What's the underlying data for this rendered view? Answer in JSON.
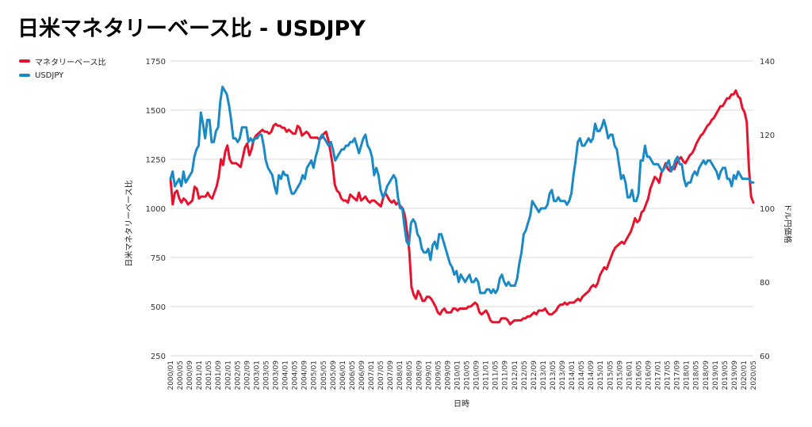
{
  "chart_data": {
    "type": "line",
    "title": "日米マネタリーベース比 - USDJPY",
    "xlabel": "日時",
    "ylabel_left": "日米マネタリーベース比",
    "ylabel_right": "ドル円価格",
    "ylim_left": [
      250,
      1750
    ],
    "ylim_right": [
      60,
      140
    ],
    "yticks_left": [
      "1750",
      "1500",
      "1250",
      "1000",
      "750",
      "500",
      "250"
    ],
    "yticks_right": [
      "140",
      "120",
      "100",
      "80",
      "60"
    ],
    "x_ticks": [
      "2000/01",
      "2000/05",
      "2000/09",
      "2001/01",
      "2001/05",
      "2001/09",
      "2002/01",
      "2002/05",
      "2002/09",
      "2003/01",
      "2003/05",
      "2003/09",
      "2004/01",
      "2004/05",
      "2004/09",
      "2005/01",
      "2005/05",
      "2005/09",
      "2006/01",
      "2006/05",
      "2006/09",
      "2007/01",
      "2007/05",
      "2007/09",
      "2008/01",
      "2008/05",
      "2008/09",
      "2009/01",
      "2009/05",
      "2009/09",
      "2010/01",
      "2010/05",
      "2010/09",
      "2011/01",
      "2011/05",
      "2011/09",
      "2012/01",
      "2012/05",
      "2012/09",
      "2013/01",
      "2013/05",
      "2013/09",
      "2014/01",
      "2014/05",
      "2014/09",
      "2015/01",
      "2015/05",
      "2015/09",
      "2016/01",
      "2016/05",
      "2016/09",
      "2017/01",
      "2017/05",
      "2017/09",
      "2018/01",
      "2018/05",
      "2018/09",
      "2019/01",
      "2019/05",
      "2019/09",
      "2020/01",
      "2020/05"
    ],
    "grid": true,
    "legend_position": "top-left",
    "series": [
      {
        "name": "マネタリーベース比",
        "color": "#e8122d",
        "axis": "left",
        "values": [
          1150,
          1020,
          1080,
          1090,
          1050,
          1030,
          1050,
          1040,
          1020,
          1030,
          1040,
          1110,
          1100,
          1050,
          1060,
          1060,
          1060,
          1080,
          1060,
          1050,
          1080,
          1110,
          1160,
          1250,
          1220,
          1290,
          1320,
          1250,
          1230,
          1230,
          1230,
          1220,
          1210,
          1260,
          1310,
          1330,
          1270,
          1300,
          1350,
          1370,
          1380,
          1390,
          1400,
          1390,
          1390,
          1380,
          1390,
          1420,
          1430,
          1420,
          1420,
          1410,
          1410,
          1390,
          1400,
          1390,
          1380,
          1380,
          1420,
          1410,
          1370,
          1380,
          1390,
          1380,
          1360,
          1360,
          1360,
          1360,
          1350,
          1360,
          1380,
          1390,
          1350,
          1290,
          1220,
          1120,
          1090,
          1080,
          1050,
          1040,
          1040,
          1030,
          1070,
          1060,
          1050,
          1040,
          1080,
          1040,
          1050,
          1060,
          1040,
          1030,
          1040,
          1040,
          1030,
          1020,
          1010,
          1050,
          1080,
          1060,
          1040,
          1030,
          1040,
          1020,
          1030,
          1010,
          1000,
          960,
          880,
          780,
          600,
          560,
          540,
          580,
          560,
          530,
          530,
          550,
          550,
          540,
          520,
          500,
          470,
          460,
          480,
          490,
          470,
          470,
          470,
          490,
          490,
          480,
          490,
          490,
          490,
          490,
          500,
          500,
          510,
          520,
          510,
          470,
          460,
          470,
          480,
          460,
          430,
          420,
          420,
          420,
          420,
          440,
          440,
          440,
          430,
          410,
          420,
          430,
          430,
          430,
          430,
          440,
          440,
          450,
          450,
          460,
          470,
          460,
          480,
          480,
          480,
          490,
          470,
          460,
          460,
          470,
          480,
          500,
          510,
          510,
          520,
          510,
          520,
          520,
          520,
          530,
          540,
          530,
          550,
          560,
          570,
          580,
          600,
          610,
          600,
          620,
          660,
          680,
          700,
          690,
          720,
          750,
          780,
          800,
          810,
          820,
          830,
          820,
          840,
          860,
          880,
          910,
          950,
          930,
          940,
          980,
          990,
          1020,
          1050,
          1100,
          1130,
          1160,
          1150,
          1130,
          1180,
          1200,
          1230,
          1200,
          1190,
          1210,
          1200,
          1230,
          1250,
          1260,
          1240,
          1230,
          1250,
          1270,
          1280,
          1300,
          1330,
          1350,
          1370,
          1380,
          1400,
          1420,
          1430,
          1450,
          1460,
          1480,
          1500,
          1520,
          1520,
          1540,
          1560,
          1560,
          1580,
          1580,
          1600,
          1570,
          1560,
          1510,
          1490,
          1440,
          1200,
          1060,
          1030
        ]
      },
      {
        "name": "USDJPY",
        "color": "#1a8ac6",
        "axis": "right",
        "values": [
          108,
          110,
          106,
          107,
          108,
          106,
          110,
          107,
          108,
          109,
          110,
          114,
          116,
          117,
          126,
          123,
          119,
          124,
          124,
          118,
          118,
          121,
          122,
          129,
          133,
          132,
          131,
          128,
          124,
          119,
          119,
          118,
          119,
          122,
          122,
          122,
          118,
          119,
          118,
          119,
          119,
          120,
          120,
          117,
          113,
          111,
          110,
          109,
          106,
          104,
          109,
          108,
          110,
          109,
          109,
          106,
          104,
          104,
          105,
          106,
          107,
          109,
          108,
          111,
          112,
          113,
          111,
          114,
          116,
          119,
          120,
          119,
          118,
          117,
          118,
          116,
          113,
          114,
          115,
          116,
          116,
          117,
          117,
          118,
          118,
          119,
          117,
          115,
          117,
          119,
          120,
          117,
          116,
          114,
          109,
          111,
          109,
          105,
          103,
          104,
          106,
          107,
          108,
          109,
          108,
          103,
          100,
          100,
          95,
          91,
          90,
          96,
          97,
          96,
          93,
          92,
          89,
          88,
          88,
          89,
          86,
          90,
          91,
          89,
          93,
          93,
          91,
          89,
          87,
          85,
          84,
          82,
          83,
          80,
          82,
          81,
          80,
          81,
          82,
          80,
          80,
          81,
          80,
          77,
          77,
          77,
          78,
          78,
          77,
          78,
          77,
          78,
          81,
          82,
          80,
          79,
          80,
          79,
          79,
          79,
          81,
          85,
          88,
          93,
          94,
          96,
          98,
          102,
          101,
          100,
          99,
          100,
          100,
          100,
          101,
          104,
          105,
          102,
          102,
          103,
          102,
          102,
          102,
          101,
          102,
          104,
          109,
          113,
          118,
          119,
          117,
          117,
          118,
          119,
          118,
          119,
          123,
          121,
          121,
          122,
          124,
          122,
          119,
          120,
          120,
          117,
          116,
          112,
          108,
          109,
          107,
          103,
          103,
          105,
          102,
          102,
          104,
          113,
          113,
          117,
          114,
          114,
          113,
          112,
          112,
          112,
          111,
          110,
          111,
          112,
          113,
          110,
          111,
          113,
          114,
          112,
          112,
          108,
          106,
          107,
          107,
          109,
          110,
          109,
          111,
          112,
          113,
          112,
          113,
          113,
          112,
          111,
          110,
          108,
          110,
          111,
          111,
          108,
          108,
          106,
          109,
          108,
          110,
          109,
          108,
          108,
          108,
          108,
          107,
          107
        ]
      }
    ]
  }
}
